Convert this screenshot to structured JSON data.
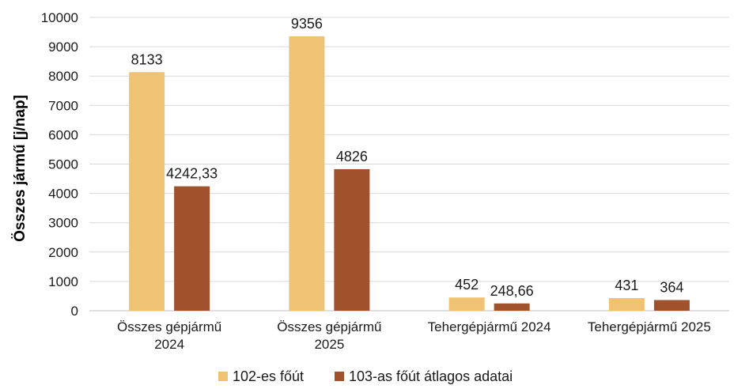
{
  "chart_data": {
    "type": "bar",
    "categories": [
      [
        "Összes gépjármű",
        "2024"
      ],
      [
        "Összes gépjármű",
        "2025"
      ],
      [
        "Tehergépjármű 2024"
      ],
      [
        "Tehergépjármű 2025"
      ]
    ],
    "series": [
      {
        "name": "102-es főút",
        "values": [
          8133,
          9356,
          452,
          431
        ],
        "labels": [
          "8133",
          "9356",
          "452",
          "431"
        ],
        "color": "#f0c273"
      },
      {
        "name": "103-as főút átlagos adatai",
        "values": [
          4242.33,
          4826,
          248.66,
          364
        ],
        "labels": [
          "4242,33",
          "4826",
          "248,66",
          "364"
        ],
        "color": "#a0522d"
      }
    ],
    "title": "",
    "xlabel": "",
    "ylabel": "Összes jármű [j/nap]",
    "ylim": [
      0,
      10000
    ],
    "yticks": [
      0,
      1000,
      2000,
      3000,
      4000,
      5000,
      6000,
      7000,
      8000,
      9000,
      10000
    ],
    "grid": true,
    "legend_position": "bottom"
  }
}
